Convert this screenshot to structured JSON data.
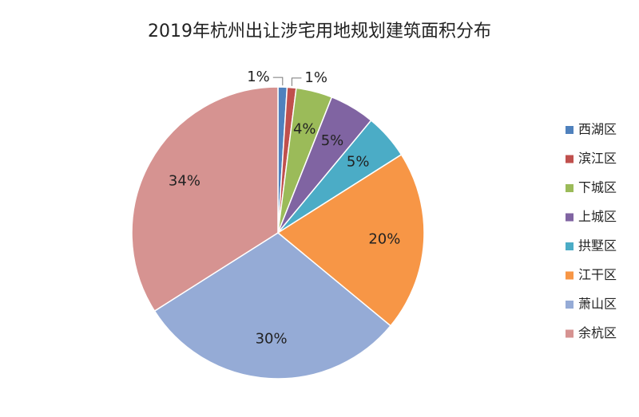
{
  "chart_data": {
    "type": "pie",
    "title": "2019年杭州出让涉宅用地规划建筑面积分布",
    "categories": [
      "西湖区",
      "滨江区",
      "下城区",
      "上城区",
      "拱墅区",
      "江干区",
      "萧山区",
      "余杭区"
    ],
    "values": [
      1,
      1,
      4,
      5,
      5,
      20,
      30,
      34
    ],
    "value_labels": [
      "1%",
      "1%",
      "4%",
      "5%",
      "5%",
      "20%",
      "30%",
      "34%"
    ],
    "colors": [
      "#4f81bd",
      "#c0504d",
      "#9bbb59",
      "#8064a2",
      "#4bacc6",
      "#f79646",
      "#95abd6",
      "#d69391"
    ],
    "legend": "right"
  }
}
